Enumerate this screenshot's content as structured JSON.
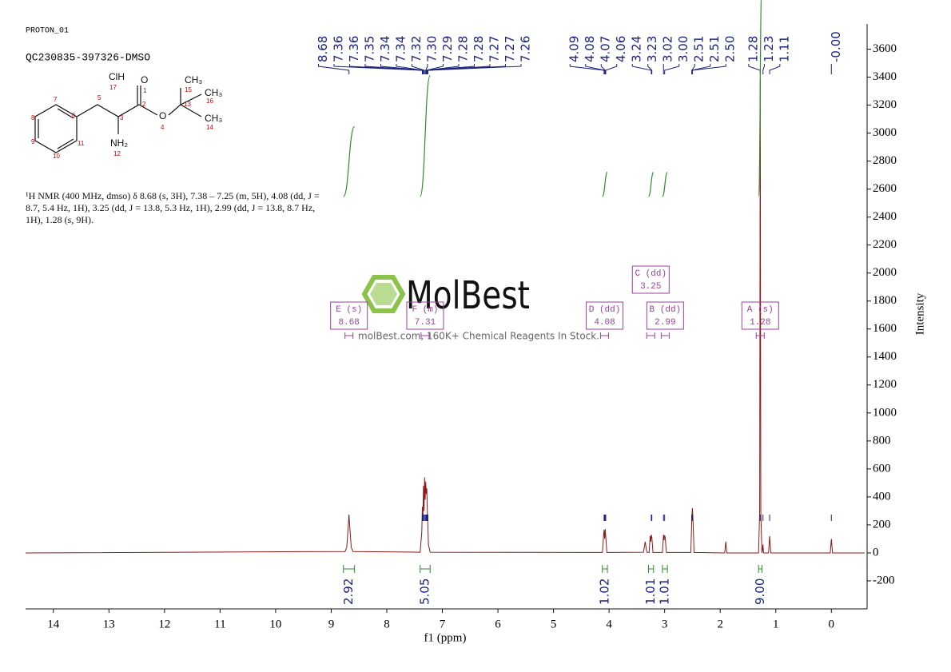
{
  "header": {
    "experiment": "PROTON_01",
    "sample": "QC230835-397326-DMSO"
  },
  "description": "¹H NMR (400 MHz, dmso) δ 8.68 (s, 3H), 7.38 – 7.25 (m, 5H), 4.08 (dd, J = 8.7, 5.4 Hz, 1H), 3.25 (dd, J = 13.8, 5.3 Hz, 1H), 2.99 (dd, J = 13.8, 8.7 Hz, 1H), 1.28 (s, 9H).",
  "molecule": {
    "atoms": [
      "ClH",
      "17",
      "O",
      "1",
      "CH₃",
      "15",
      "13",
      "CH₃",
      "16",
      "2",
      "5",
      "7",
      "6",
      "3",
      "O",
      "4",
      "CH₃",
      "14",
      "8",
      "9",
      "11",
      "10",
      "NH₂",
      "12"
    ]
  },
  "watermark": {
    "brand": "MolBest",
    "tagline": "molBest.com, 160K+ Chemical Reagents In Stock."
  },
  "chart_data": {
    "type": "spectrum",
    "xlabel": "f1 (ppm)",
    "ylabel": "Intensity",
    "xlim": [
      14.5,
      -0.6
    ],
    "ylim": [
      -400,
      3780
    ],
    "xticks": [
      14,
      13,
      12,
      11,
      10,
      9,
      8,
      7,
      6,
      5,
      4,
      3,
      2,
      1,
      0
    ],
    "yticks": [
      -200,
      0,
      200,
      400,
      600,
      800,
      1000,
      1200,
      1400,
      1600,
      1800,
      2000,
      2200,
      2400,
      2600,
      2800,
      3000,
      3200,
      3400,
      3600
    ],
    "spectrum": {
      "color": "#8b1a1a",
      "x": [
        14.5,
        8.75,
        8.72,
        8.68,
        8.64,
        8.61,
        7.4,
        7.37,
        7.36,
        7.35,
        7.34,
        7.33,
        7.32,
        7.31,
        7.3,
        7.29,
        7.28,
        7.27,
        7.26,
        7.25,
        7.22,
        4.12,
        4.1,
        4.09,
        4.08,
        4.07,
        4.06,
        4.04,
        3.38,
        3.35,
        3.32,
        3.28,
        3.26,
        3.25,
        3.24,
        3.23,
        3.21,
        3.04,
        3.02,
        3.01,
        3,
        2.99,
        2.97,
        2.53,
        2.51,
        2.5,
        2.49,
        2.47,
        1.92,
        1.9,
        1.88,
        1.31,
        1.29,
        1.28,
        1.27,
        1.25,
        1.24,
        1.23,
        1.22,
        1.13,
        1.11,
        1.09,
        0.02,
        0,
        -0.02,
        -0.6
      ],
      "values": [
        0,
        10,
        40,
        265,
        40,
        10,
        5,
        150,
        330,
        250,
        480,
        300,
        540,
        380,
        510,
        420,
        460,
        300,
        200,
        60,
        5,
        3,
        120,
        165,
        100,
        170,
        115,
        3,
        5,
        80,
        5,
        3,
        120,
        80,
        130,
        110,
        3,
        3,
        130,
        90,
        125,
        110,
        3,
        3,
        250,
        320,
        250,
        3,
        0,
        80,
        0,
        0,
        300,
        3380,
        300,
        0,
        20,
        60,
        0,
        0,
        120,
        0,
        0,
        100,
        0,
        0
      ]
    },
    "peak_labels": [
      8.68,
      7.36,
      7.36,
      7.35,
      7.34,
      7.34,
      7.32,
      {
        "value": 7.3,
        "label": "7.30"
      },
      7.29,
      7.28,
      7.28,
      7.27,
      7.27,
      7.26,
      4.09,
      4.08,
      4.07,
      4.06,
      3.24,
      3.23,
      3.02,
      {
        "value": 3,
        "label": "3.00"
      },
      2.51,
      2.51,
      {
        "value": 2.5,
        "label": "2.50"
      },
      1.28,
      1.23,
      1.11,
      {
        "value": 0,
        "label": "-0.00"
      }
    ],
    "peak_label_color": "#1a237e",
    "integrals": [
      {
        "range": [
          8.78,
          8.58
        ],
        "value": 2.92
      },
      {
        "range": [
          7.4,
          7.22
        ],
        "value": 5.05
      },
      {
        "range": [
          4.12,
          4.03
        ],
        "value": 1.02
      },
      {
        "range": [
          3.29,
          3.2
        ],
        "value": 1.01
      },
      {
        "range": [
          3.04,
          2.95
        ],
        "value": 1.01
      },
      {
        "range": [
          1.31,
          1.25
        ],
        "value": 9,
        "label": "9.00"
      }
    ],
    "integral_color": "#2e8b2e",
    "multiplets": [
      {
        "name": "A (s)",
        "shift": 1.28
      },
      {
        "name": "B (dd)",
        "shift": 2.99
      },
      {
        "name": "C (dd)",
        "shift": 3.25
      },
      {
        "name": "D (dd)",
        "shift": 4.08
      },
      {
        "name": "E (s)",
        "shift": 8.68
      },
      {
        "name": "F (m)",
        "shift": 7.31
      }
    ],
    "multiplet_color": "#9c3f9c"
  }
}
